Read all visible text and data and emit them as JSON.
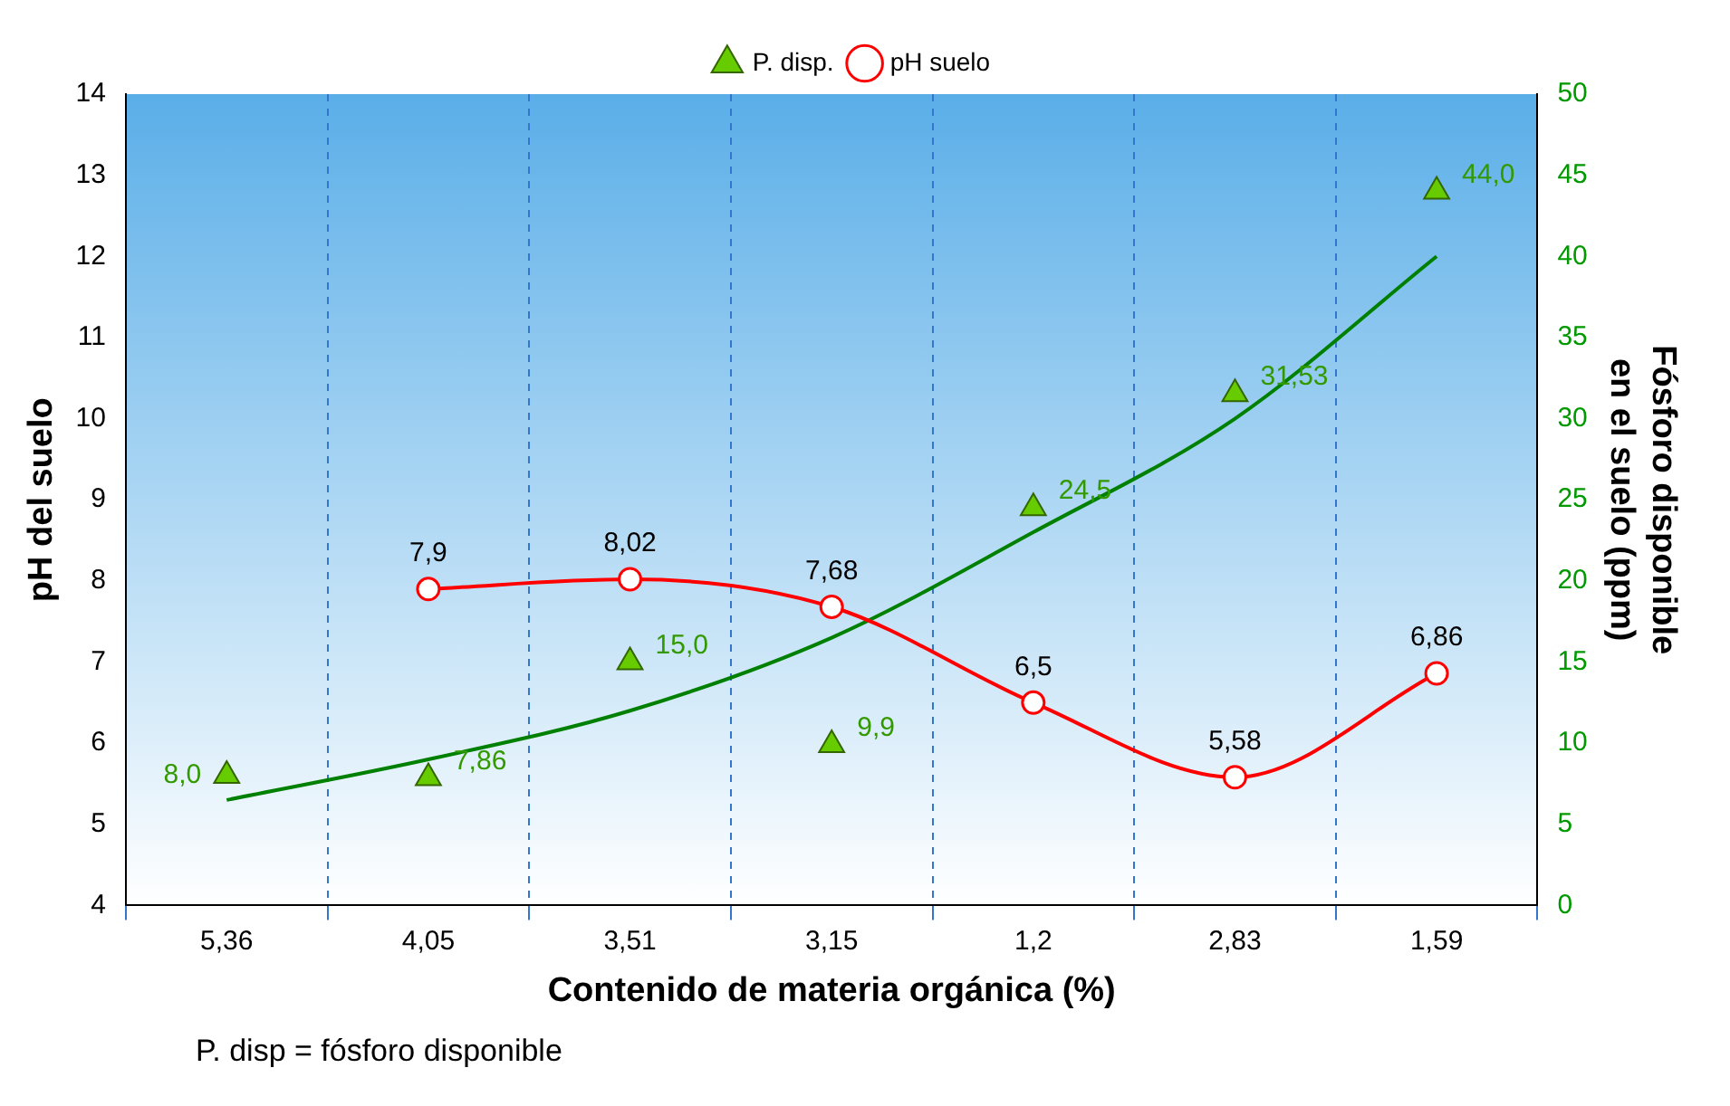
{
  "chart_data": {
    "type": "line",
    "xlabel": "Contenido de materia orgánica (%)",
    "ylabel": "pH del suelo",
    "y2label": "Fósforo disponible en el suelo (ppm)",
    "categories": [
      "5,36",
      "4,05",
      "3,51",
      "3,15",
      "1,2",
      "2,83",
      "1,59"
    ],
    "series": [
      {
        "name": "P. disp.",
        "type": "scatter",
        "axis": "y2",
        "color": "#66cc00",
        "marker": "triangle",
        "values": [
          8.0,
          7.86,
          15.0,
          9.9,
          24.5,
          31.53,
          44.0
        ],
        "value_labels": [
          "8,0",
          "7,86",
          "15,0",
          "9,9",
          "24,5",
          "31,53",
          "44,0"
        ]
      },
      {
        "name": "pH suelo",
        "type": "line",
        "color": "#ff0000",
        "marker": "circle",
        "values": [
          null,
          7.9,
          8.02,
          7.68,
          6.5,
          5.58,
          6.86
        ],
        "value_labels": [
          null,
          "7,9",
          "8,02",
          "7,68",
          "6,5",
          "5,58",
          "6,86"
        ]
      },
      {
        "type": "line",
        "axis": "y2",
        "color": "#008000",
        "marker": "none",
        "values": [
          6.5,
          9,
          12,
          16.5,
          23,
          30,
          40
        ]
      }
    ],
    "ylim": [
      4,
      14
    ],
    "yticks": [
      4,
      5,
      6,
      7,
      8,
      9,
      10,
      11,
      12,
      13,
      14
    ],
    "y2lim": [
      0,
      50
    ],
    "y2ticks": [
      0,
      5,
      10,
      15,
      20,
      25,
      30,
      35,
      40,
      45,
      50
    ],
    "grid": "x",
    "legend": "top",
    "annotations": [
      "P. disp = fósforo disponible"
    ]
  }
}
